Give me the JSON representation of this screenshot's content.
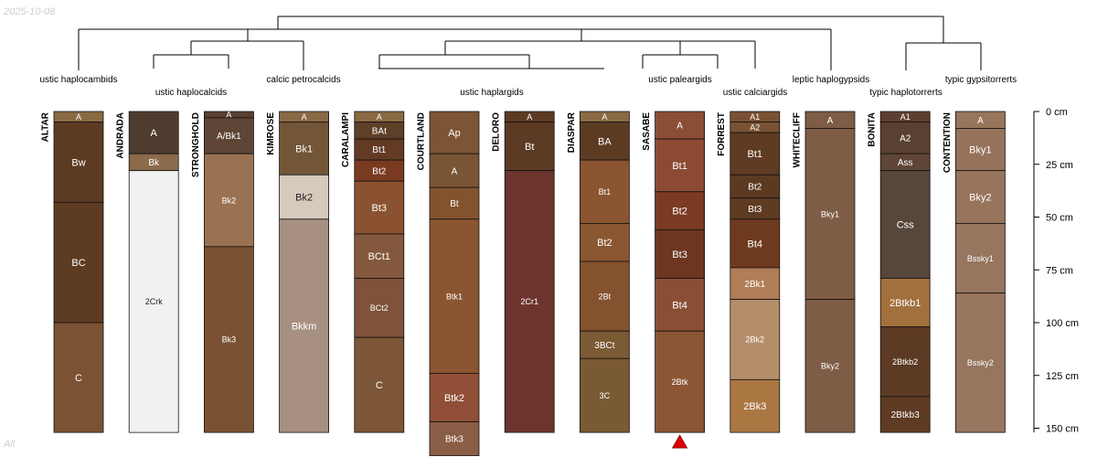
{
  "header": {
    "date": "2025-10-08",
    "footer": "All"
  },
  "chart_data": {
    "type": "soil-profile-sketch",
    "depth_unit": "cm",
    "depth_ticks": [
      0,
      25,
      50,
      75,
      100,
      125,
      150
    ],
    "depth_tick_labels": [
      "0 cm",
      "25 cm",
      "50 cm",
      "75 cm",
      "100 cm",
      "125 cm",
      "150 cm"
    ],
    "taxa": [
      "ustic haplocambids",
      "ustic haplocalcids",
      "calcic petrocalcids",
      "ustic haplargids",
      "ustic paleargids",
      "ustic calciargids",
      "leptic haplogypsids",
      "typic haplotorrerts",
      "typic gypsitorrerts"
    ],
    "profiles": [
      {
        "name": "ALTAR",
        "horizons": [
          {
            "name": "A",
            "top": 0,
            "bottom": 5,
            "color": "#8a6a42"
          },
          {
            "name": "Bw",
            "top": 5,
            "bottom": 43,
            "color": "#5c3b22"
          },
          {
            "name": "BC",
            "top": 43,
            "bottom": 100,
            "color": "#5e3c22"
          },
          {
            "name": "C",
            "top": 100,
            "bottom": 152,
            "color": "#7b5233"
          }
        ]
      },
      {
        "name": "ANDRADA",
        "horizons": [
          {
            "name": "A",
            "top": 0,
            "bottom": 20,
            "color": "#4f3c2e"
          },
          {
            "name": "Bk",
            "top": 20,
            "bottom": 28,
            "color": "#8c6a4c"
          },
          {
            "name": "2Crk",
            "top": 28,
            "bottom": 152,
            "color": "#f2f1f1"
          }
        ]
      },
      {
        "name": "STRONGHOLD",
        "horizons": [
          {
            "name": "A",
            "top": 0,
            "bottom": 3,
            "color": "#5a4030"
          },
          {
            "name": "A/Bk1",
            "top": 3,
            "bottom": 20,
            "color": "#5e4535"
          },
          {
            "name": "Bk2",
            "top": 20,
            "bottom": 64,
            "color": "#9a7252"
          },
          {
            "name": "Bk3",
            "top": 64,
            "bottom": 152,
            "color": "#7a5233"
          }
        ]
      },
      {
        "name": "KIMROSE",
        "horizons": [
          {
            "name": "A",
            "top": 0,
            "bottom": 5,
            "color": "#8a6a45"
          },
          {
            "name": "Bk1",
            "top": 5,
            "bottom": 30,
            "color": "#725637"
          },
          {
            "name": "Bk2",
            "top": 30,
            "bottom": 51,
            "color": "#d6cabd"
          },
          {
            "name": "Bkkm",
            "top": 51,
            "bottom": 152,
            "color": "#a79080"
          }
        ]
      },
      {
        "name": "CARALAMPI",
        "horizons": [
          {
            "name": "A",
            "top": 0,
            "bottom": 5,
            "color": "#8a6a42"
          },
          {
            "name": "BAt",
            "top": 5,
            "bottom": 13,
            "color": "#5e3f27"
          },
          {
            "name": "Bt1",
            "top": 13,
            "bottom": 23,
            "color": "#633a24"
          },
          {
            "name": "Bt2",
            "top": 23,
            "bottom": 33,
            "color": "#7a3a1f"
          },
          {
            "name": "Bt3",
            "top": 33,
            "bottom": 58,
            "color": "#8a5230"
          },
          {
            "name": "BCt1",
            "top": 58,
            "bottom": 79,
            "color": "#84583c"
          },
          {
            "name": "BCt2",
            "top": 79,
            "bottom": 107,
            "color": "#7f5239"
          },
          {
            "name": "C",
            "top": 107,
            "bottom": 152,
            "color": "#7c5636"
          }
        ]
      },
      {
        "name": "COURTLAND",
        "horizons": [
          {
            "name": "Ap",
            "top": 0,
            "bottom": 20,
            "color": "#7b5535"
          },
          {
            "name": "A",
            "top": 20,
            "bottom": 36,
            "color": "#7a5535"
          },
          {
            "name": "Bt",
            "top": 36,
            "bottom": 51,
            "color": "#83532e"
          },
          {
            "name": "Btk1",
            "top": 51,
            "bottom": 124,
            "color": "#8a5530"
          },
          {
            "name": "Btk2",
            "top": 124,
            "bottom": 147,
            "color": "#904f36"
          },
          {
            "name": "Btk3",
            "top": 147,
            "bottom": 163,
            "color": "#8a5e46"
          }
        ]
      },
      {
        "name": "DELORO",
        "horizons": [
          {
            "name": "A",
            "top": 0,
            "bottom": 5,
            "color": "#5e3b23"
          },
          {
            "name": "Bt",
            "top": 5,
            "bottom": 28,
            "color": "#5c3a24"
          },
          {
            "name": "2Cr1",
            "top": 28,
            "bottom": 152,
            "color": "#6c342c"
          }
        ]
      },
      {
        "name": "DIASPAR",
        "horizons": [
          {
            "name": "A",
            "top": 0,
            "bottom": 5,
            "color": "#8a6a42"
          },
          {
            "name": "BA",
            "top": 5,
            "bottom": 23,
            "color": "#5c3b23"
          },
          {
            "name": "Bt1",
            "top": 23,
            "bottom": 53,
            "color": "#8a5530"
          },
          {
            "name": "Bt2",
            "top": 53,
            "bottom": 71,
            "color": "#8b5733"
          },
          {
            "name": "2Bt",
            "top": 71,
            "bottom": 104,
            "color": "#84522e"
          },
          {
            "name": "3BCt",
            "top": 104,
            "bottom": 117,
            "color": "#7b5a34"
          },
          {
            "name": "3C",
            "top": 117,
            "bottom": 152,
            "color": "#7a5a34"
          }
        ]
      },
      {
        "name": "SASABE",
        "horizons": [
          {
            "name": "A",
            "top": 0,
            "bottom": 13,
            "color": "#8a4e36"
          },
          {
            "name": "Bt1",
            "top": 13,
            "bottom": 38,
            "color": "#8c4a34"
          },
          {
            "name": "Bt2",
            "top": 38,
            "bottom": 56,
            "color": "#7a3a24"
          },
          {
            "name": "Bt3",
            "top": 56,
            "bottom": 79,
            "color": "#6e3520"
          },
          {
            "name": "Bt4",
            "top": 79,
            "bottom": 104,
            "color": "#8a4e36"
          },
          {
            "name": "2Btk",
            "top": 104,
            "bottom": 152,
            "color": "#8c5535"
          }
        ]
      },
      {
        "name": "FORREST",
        "horizons": [
          {
            "name": "A1",
            "top": 0,
            "bottom": 5,
            "color": "#7a5233"
          },
          {
            "name": "A2",
            "top": 5,
            "bottom": 10,
            "color": "#7a5233"
          },
          {
            "name": "Bt1",
            "top": 10,
            "bottom": 30,
            "color": "#5e3b22"
          },
          {
            "name": "Bt2",
            "top": 30,
            "bottom": 41,
            "color": "#5c3a22"
          },
          {
            "name": "Bt3",
            "top": 41,
            "bottom": 51,
            "color": "#5e3b22"
          },
          {
            "name": "Bt4",
            "top": 51,
            "bottom": 74,
            "color": "#6e3a1e"
          },
          {
            "name": "2Bk1",
            "top": 74,
            "bottom": 89,
            "color": "#b07d57"
          },
          {
            "name": "2Bk2",
            "top": 89,
            "bottom": 127,
            "color": "#b48e6b"
          },
          {
            "name": "2Bk3",
            "top": 127,
            "bottom": 152,
            "color": "#aa7742"
          }
        ]
      },
      {
        "name": "WHITECLIFF",
        "horizons": [
          {
            "name": "A",
            "top": 0,
            "bottom": 8,
            "color": "#7e5c45"
          },
          {
            "name": "Bky1",
            "top": 8,
            "bottom": 89,
            "color": "#7e5c45"
          },
          {
            "name": "Bky2",
            "top": 89,
            "bottom": 152,
            "color": "#7e5c45"
          }
        ]
      },
      {
        "name": "BONITA",
        "horizons": [
          {
            "name": "A1",
            "top": 0,
            "bottom": 5,
            "color": "#5e4030"
          },
          {
            "name": "A2",
            "top": 5,
            "bottom": 20,
            "color": "#5a4030"
          },
          {
            "name": "Ass",
            "top": 20,
            "bottom": 28,
            "color": "#5e4535"
          },
          {
            "name": "Css",
            "top": 28,
            "bottom": 79,
            "color": "#57463a"
          },
          {
            "name": "2Btkb1",
            "top": 79,
            "bottom": 102,
            "color": "#a2703c"
          },
          {
            "name": "2Btkb2",
            "top": 102,
            "bottom": 135,
            "color": "#5c3a24"
          },
          {
            "name": "2Btkb3",
            "top": 135,
            "bottom": 152,
            "color": "#5e3b22"
          }
        ]
      },
      {
        "name": "CONTENTION",
        "horizons": [
          {
            "name": "A",
            "top": 0,
            "bottom": 8,
            "color": "#98765c"
          },
          {
            "name": "Bky1",
            "top": 8,
            "bottom": 28,
            "color": "#97725a"
          },
          {
            "name": "Bky2",
            "top": 28,
            "bottom": 53,
            "color": "#98745c"
          },
          {
            "name": "Bssky1",
            "top": 53,
            "bottom": 86,
            "color": "#97755e"
          },
          {
            "name": "Bssky2",
            "top": 86,
            "bottom": 152,
            "color": "#97755e"
          }
        ]
      }
    ],
    "truncated_marker": {
      "profile": "SASABE",
      "symbol": "red-triangle",
      "color": "#e00000"
    }
  }
}
